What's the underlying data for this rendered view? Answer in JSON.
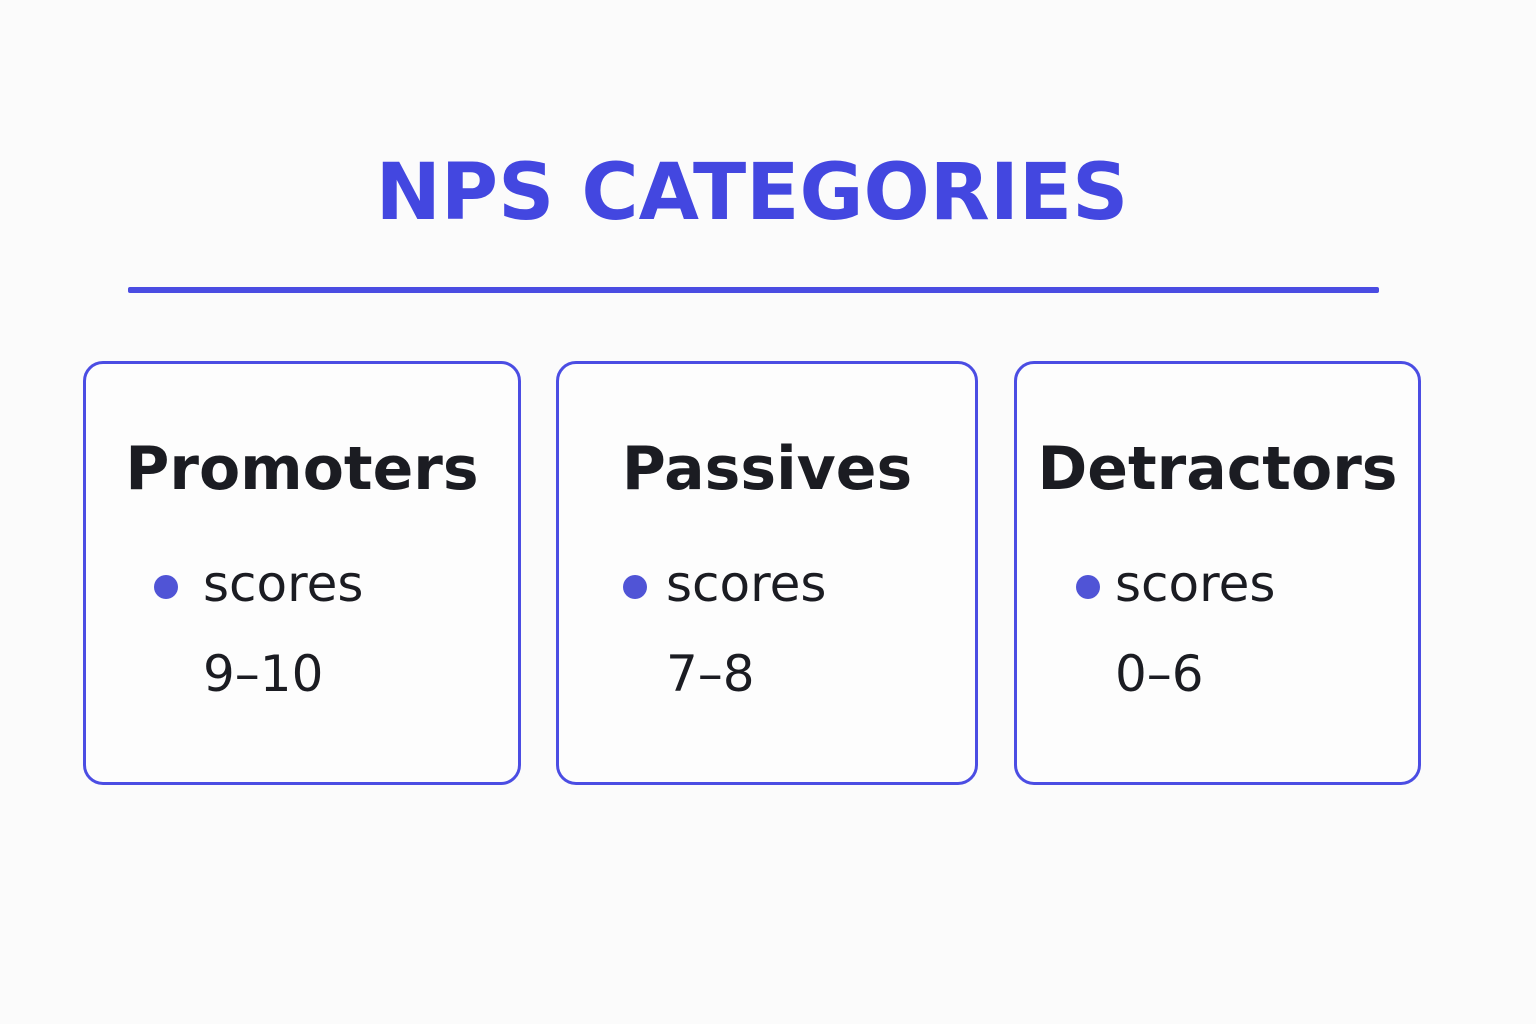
{
  "title": "NPS CATEGORIES",
  "categories": [
    {
      "name": "Promoters",
      "label": "scores",
      "range": "9–10"
    },
    {
      "name": "Passives",
      "label": "scores",
      "range": "7–8"
    },
    {
      "name": "Detractors",
      "label": "scores",
      "range": "0–6"
    }
  ],
  "colors": {
    "accent": "#4347e0",
    "text": "#1b1c22",
    "background": "#fbfbfb",
    "bullet": "#5054d6"
  }
}
